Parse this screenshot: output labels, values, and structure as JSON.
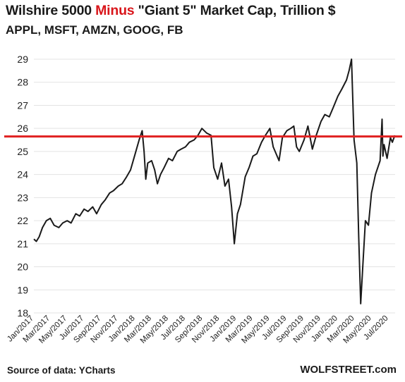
{
  "header": {
    "title_a": "Wilshire 5000 ",
    "title_b": "Minus",
    "title_c": " \"Giant 5\" Market Cap, Trillion $",
    "subtitle": "APPL, MSFT, AMZN, GOOG, FB"
  },
  "footer": {
    "source": "Source of data: YCharts",
    "brand": "WOLFSTREET.com"
  },
  "colors": {
    "line": "#1a1a1a",
    "reference_line": "#e02020",
    "highlight": "#d9161b",
    "grid": "#e3e3e3"
  },
  "chart_data": {
    "type": "line",
    "title": "Wilshire 5000 Minus \"Giant 5\" Market Cap, Trillion $",
    "subtitle": "APPL, MSFT, AMZN, GOOG, FB",
    "ylim": [
      18,
      29
    ],
    "yticks": [
      18,
      19,
      20,
      21,
      22,
      23,
      24,
      25,
      26,
      27,
      28,
      29
    ],
    "xlim": [
      "2017-01-01",
      "2020-07-25"
    ],
    "xticks": [
      {
        "date": "2017-01-01",
        "label": "Jan/2017"
      },
      {
        "date": "2017-03-01",
        "label": "Mar/2017"
      },
      {
        "date": "2017-05-01",
        "label": "May/2017"
      },
      {
        "date": "2017-07-01",
        "label": "Jul/2017"
      },
      {
        "date": "2017-09-01",
        "label": "Sep/2017"
      },
      {
        "date": "2017-11-01",
        "label": "Nov/2017"
      },
      {
        "date": "2018-01-01",
        "label": "Jan/2018"
      },
      {
        "date": "2018-03-01",
        "label": "Mar/2018"
      },
      {
        "date": "2018-05-01",
        "label": "May/2018"
      },
      {
        "date": "2018-07-01",
        "label": "Jul/2018"
      },
      {
        "date": "2018-09-01",
        "label": "Sep/2018"
      },
      {
        "date": "2018-11-01",
        "label": "Nov/2018"
      },
      {
        "date": "2019-01-01",
        "label": "Jan/2019"
      },
      {
        "date": "2019-03-01",
        "label": "Mar/2019"
      },
      {
        "date": "2019-05-01",
        "label": "May/2019"
      },
      {
        "date": "2019-07-01",
        "label": "Jul/2019"
      },
      {
        "date": "2019-09-01",
        "label": "Sep/2019"
      },
      {
        "date": "2019-11-01",
        "label": "Nov/2019"
      },
      {
        "date": "2020-01-01",
        "label": "Jan/2020"
      },
      {
        "date": "2020-03-01",
        "label": "Mar/2020"
      },
      {
        "date": "2020-05-01",
        "label": "May/2020"
      },
      {
        "date": "2020-07-01",
        "label": "Jul/2020"
      }
    ],
    "reference_line": 25.65,
    "grid": "horizontal",
    "series": [
      {
        "x": [
          "2017-01-01",
          "2017-01-10",
          "2017-01-20",
          "2017-02-01",
          "2017-02-15",
          "2017-03-01",
          "2017-03-15",
          "2017-04-01",
          "2017-04-15",
          "2017-05-01",
          "2017-05-15",
          "2017-06-01",
          "2017-06-15",
          "2017-07-01",
          "2017-07-15",
          "2017-08-01",
          "2017-08-15",
          "2017-09-01",
          "2017-09-15",
          "2017-10-01",
          "2017-10-15",
          "2017-11-01",
          "2017-11-15",
          "2017-12-01",
          "2017-12-15",
          "2018-01-01",
          "2018-01-15",
          "2018-01-26",
          "2018-02-02",
          "2018-02-08",
          "2018-02-15",
          "2018-03-01",
          "2018-03-12",
          "2018-03-22",
          "2018-04-02",
          "2018-04-15",
          "2018-05-01",
          "2018-05-15",
          "2018-06-01",
          "2018-06-15",
          "2018-07-01",
          "2018-07-15",
          "2018-08-01",
          "2018-08-15",
          "2018-08-29",
          "2018-09-15",
          "2018-10-01",
          "2018-10-11",
          "2018-10-25",
          "2018-11-08",
          "2018-11-20",
          "2018-12-03",
          "2018-12-14",
          "2018-12-24",
          "2019-01-04",
          "2019-01-15",
          "2019-02-01",
          "2019-02-15",
          "2019-03-01",
          "2019-03-15",
          "2019-04-01",
          "2019-04-15",
          "2019-05-01",
          "2019-05-13",
          "2019-06-03",
          "2019-06-15",
          "2019-07-01",
          "2019-07-15",
          "2019-07-26",
          "2019-08-05",
          "2019-08-15",
          "2019-09-01",
          "2019-09-15",
          "2019-10-01",
          "2019-10-15",
          "2019-11-01",
          "2019-11-15",
          "2019-12-01",
          "2019-12-15",
          "2020-01-01",
          "2020-01-15",
          "2020-02-01",
          "2020-02-10",
          "2020-02-19",
          "2020-02-28",
          "2020-03-09",
          "2020-03-16",
          "2020-03-23",
          "2020-04-01",
          "2020-04-09",
          "2020-04-20",
          "2020-05-01",
          "2020-05-15",
          "2020-06-01",
          "2020-06-08",
          "2020-06-11",
          "2020-06-15",
          "2020-06-26",
          "2020-07-08",
          "2020-07-15",
          "2020-07-24"
        ],
        "values": [
          21.2,
          21.1,
          21.3,
          21.7,
          22.0,
          22.1,
          21.8,
          21.7,
          21.9,
          22.0,
          21.9,
          22.3,
          22.2,
          22.5,
          22.4,
          22.6,
          22.3,
          22.7,
          22.9,
          23.2,
          23.3,
          23.5,
          23.6,
          23.9,
          24.2,
          24.9,
          25.5,
          25.9,
          25.0,
          23.8,
          24.5,
          24.6,
          24.2,
          23.6,
          24.0,
          24.3,
          24.7,
          24.6,
          25.0,
          25.1,
          25.2,
          25.4,
          25.5,
          25.7,
          26.0,
          25.8,
          25.7,
          24.3,
          23.8,
          24.5,
          23.5,
          23.8,
          22.6,
          21.0,
          22.3,
          22.7,
          23.9,
          24.3,
          24.8,
          24.9,
          25.4,
          25.7,
          26.0,
          25.2,
          24.6,
          25.6,
          25.9,
          26.0,
          26.1,
          25.2,
          25.0,
          25.5,
          26.1,
          25.1,
          25.7,
          26.3,
          26.6,
          26.5,
          26.9,
          27.4,
          27.7,
          28.1,
          28.5,
          29.0,
          25.5,
          24.5,
          21.3,
          18.4,
          20.3,
          22.0,
          21.8,
          23.2,
          24.0,
          24.6,
          26.4,
          24.8,
          25.3,
          24.7,
          25.6,
          25.4,
          25.7
        ]
      }
    ]
  }
}
